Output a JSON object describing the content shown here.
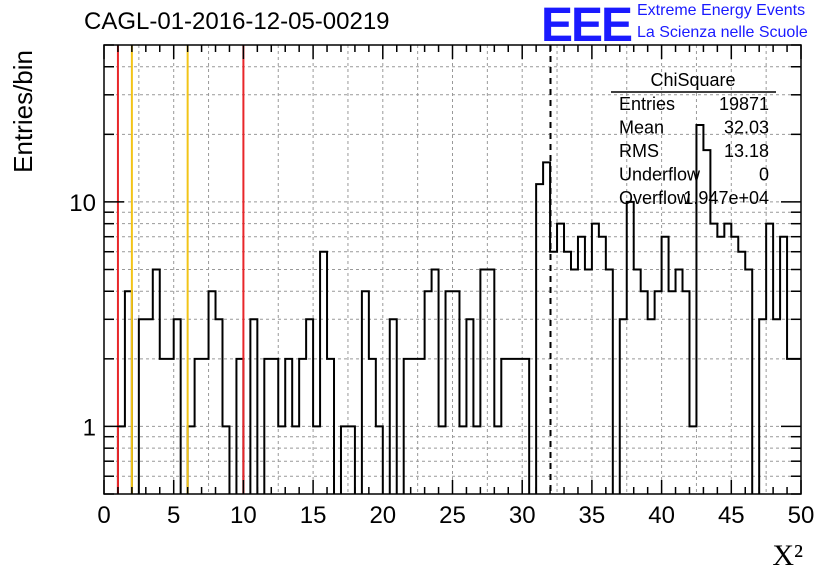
{
  "header": {
    "title": "CAGL-01-2016-12-05-00219",
    "logo_text": "EEE",
    "logo_line1": "Extreme Energy Events",
    "logo_line2": "La Scienza nelle Scuole"
  },
  "colors": {
    "histogram": "#000000",
    "red_lines": "#e8262a",
    "yellow_lines": "#f2c418",
    "logo": "#1a1aff",
    "grid": "#999999"
  },
  "chart_data": {
    "type": "histogram",
    "title": "CAGL-01-2016-12-05-00219",
    "xlabel": "X²",
    "ylabel": "Entries/bin",
    "xlim": [
      0,
      50
    ],
    "ylim": [
      0.5,
      50
    ],
    "yscale": "log",
    "grid": true,
    "bin_width": 0.5,
    "x_ticks": [
      "0",
      "5",
      "10",
      "15",
      "20",
      "25",
      "30",
      "35",
      "40",
      "45",
      "50"
    ],
    "y_ticks": [
      {
        "value": 1,
        "label": "1"
      },
      {
        "value": 10,
        "label": "10"
      }
    ],
    "counts": [
      0,
      0,
      1,
      4,
      0,
      3,
      3,
      5,
      2,
      2,
      3,
      0,
      1,
      2,
      2,
      4,
      3,
      1,
      0,
      2,
      0,
      3,
      0,
      2,
      2,
      1,
      2,
      1,
      2,
      3,
      1,
      6,
      2,
      0,
      1,
      1,
      0,
      4,
      2,
      1,
      0,
      3,
      0,
      2,
      2,
      2,
      4,
      5,
      1,
      4,
      4,
      1,
      3,
      1,
      5,
      5,
      1,
      2,
      2,
      2,
      2,
      0,
      12,
      15,
      6,
      8,
      6,
      5,
      7,
      5,
      8,
      7,
      5,
      0,
      3,
      10,
      5,
      4,
      3,
      4,
      7,
      4,
      5,
      4,
      1,
      22,
      17,
      8,
      7,
      8,
      7,
      6,
      5,
      0,
      3,
      8,
      3,
      7,
      2,
      2
    ],
    "vertical_lines": [
      {
        "x": 1,
        "color": "red",
        "style": "solid"
      },
      {
        "x": 2,
        "color": "yellow",
        "style": "solid"
      },
      {
        "x": 6,
        "color": "yellow",
        "style": "solid"
      },
      {
        "x": 10,
        "color": "red",
        "style": "solid"
      },
      {
        "x": 32.03,
        "color": "black",
        "style": "dashed"
      }
    ],
    "stats": {
      "title": "ChiSquare",
      "rows": [
        {
          "label": "Entries",
          "value": "19871"
        },
        {
          "label": "Mean",
          "value": "32.03"
        },
        {
          "label": "RMS",
          "value": "13.18"
        },
        {
          "label": "Underflow",
          "value": "0"
        },
        {
          "label": "Overflow",
          "value": "1.947e+04"
        }
      ]
    }
  }
}
